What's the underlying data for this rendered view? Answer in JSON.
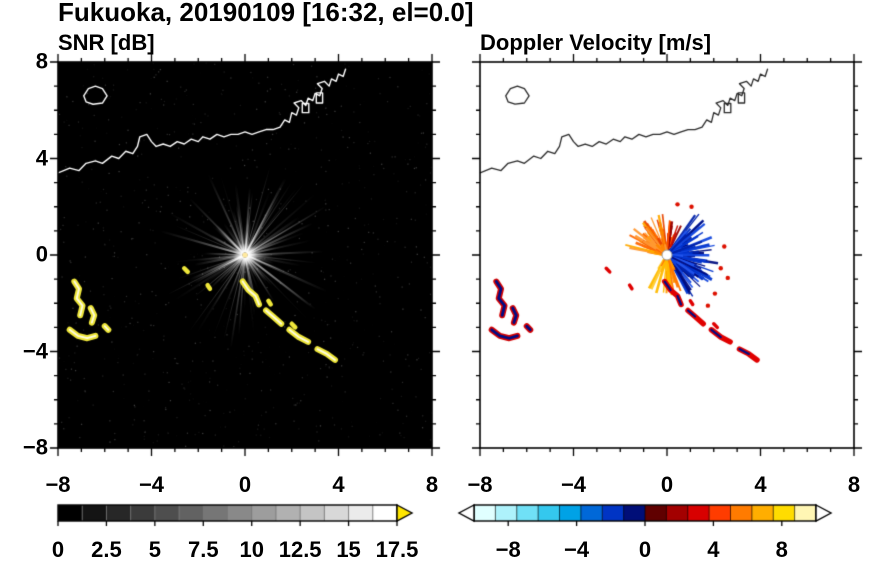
{
  "header": {
    "title": "Fukuoka, 20190109 [16:32, el=0.0]"
  },
  "panels": {
    "snr": {
      "title": "SNR [dB]"
    },
    "velocity": {
      "title": "Doppler Velocity [m/s]"
    }
  },
  "axes": {
    "x_ticks": [
      "−8",
      "−4",
      "0",
      "4",
      "8"
    ],
    "x_tick_values": [
      -8,
      -4,
      0,
      4,
      8
    ],
    "y_ticks": [
      "8",
      "4",
      "0",
      "−4",
      "−8"
    ],
    "y_tick_values": [
      8,
      4,
      0,
      -4,
      -8
    ],
    "range": [
      -8,
      8
    ]
  },
  "colorbars": {
    "snr": {
      "ticks": [
        "0",
        "2.5",
        "5",
        "7.5",
        "10",
        "12.5",
        "15",
        "17.5"
      ],
      "values": [
        0,
        2.5,
        5,
        7.5,
        10,
        12.5,
        15,
        17.5
      ],
      "range": [
        0,
        17.5
      ],
      "segments": 14,
      "colormap": "grayscale",
      "over_color": "#ffe600"
    },
    "velocity": {
      "ticks": [
        "−8",
        "−4",
        "0",
        "4",
        "8"
      ],
      "values": [
        -8,
        -4,
        0,
        4,
        8
      ],
      "range": [
        -10,
        10
      ],
      "colors": [
        "#e0ffff",
        "#aef2fb",
        "#70e0f6",
        "#34c8ee",
        "#00a2e6",
        "#0068d8",
        "#0034c4",
        "#000e78",
        "#600000",
        "#a30000",
        "#d80000",
        "#ff3c00",
        "#ff7b00",
        "#ffae00",
        "#ffdc00",
        "#fff6b4"
      ],
      "under_color": "#ffffff",
      "over_color": "#ffffff"
    }
  },
  "chart_data": [
    {
      "type": "heatmap",
      "title": "SNR [dB]",
      "xlabel": "",
      "ylabel": "",
      "xlim": [
        -8,
        8
      ],
      "ylim": [
        -8,
        8
      ],
      "background": "#000000",
      "description": "Radar PPI of signal-to-noise ratio over Fukuoka; bright white beams radiate from the radar at the origin over a black background; strong (> 17.5 dB, yellow) sea/ground clutter arcs lie near (-7,-2) and along a curve from (0,-1) to (3.9,-4.4); the coastline of Hakata Bay is drawn in white along the top of the map.",
      "radar": {
        "center": [
          0,
          0
        ],
        "beam_rays": {
          "count": 170,
          "max_radius": 4.1,
          "color": "#ffffff"
        }
      },
      "clutter_color": "#efe73a",
      "clutter_arcs": [
        [
          [
            -7.3,
            -1.1
          ],
          [
            -7.1,
            -1.4
          ],
          [
            -7.2,
            -1.8
          ],
          [
            -6.95,
            -2.1
          ],
          [
            -7.05,
            -2.5
          ]
        ],
        [
          [
            -6.6,
            -2.2
          ],
          [
            -6.45,
            -2.5
          ],
          [
            -6.55,
            -2.8
          ]
        ],
        [
          [
            -7.5,
            -3.1
          ],
          [
            -7.15,
            -3.35
          ],
          [
            -6.75,
            -3.45
          ],
          [
            -6.4,
            -3.35
          ]
        ],
        [
          [
            -6.0,
            -2.95
          ],
          [
            -5.85,
            -3.1
          ]
        ],
        [
          [
            -0.1,
            -1.1
          ],
          [
            0.15,
            -1.45
          ],
          [
            0.45,
            -1.7
          ],
          [
            0.6,
            -2.05
          ]
        ],
        [
          [
            0.9,
            -2.3
          ],
          [
            1.2,
            -2.55
          ],
          [
            1.55,
            -2.85
          ]
        ],
        [
          [
            1.9,
            -3.1
          ],
          [
            2.3,
            -3.4
          ],
          [
            2.7,
            -3.6
          ]
        ],
        [
          [
            3.1,
            -3.9
          ],
          [
            3.5,
            -4.1
          ],
          [
            3.85,
            -4.35
          ]
        ]
      ],
      "clutter_specks": [
        [
          [
            -2.6,
            -0.55
          ],
          [
            -2.45,
            -0.7
          ]
        ],
        [
          [
            -1.6,
            -1.25
          ],
          [
            -1.5,
            -1.4
          ]
        ],
        [
          [
            1.0,
            -1.9
          ],
          [
            1.1,
            -2.05
          ]
        ],
        [
          [
            2.0,
            -2.85
          ],
          [
            2.15,
            -3.0
          ]
        ]
      ],
      "coastline": [
        [
          -8.0,
          3.4
        ],
        [
          -7.5,
          3.6
        ],
        [
          -7.1,
          3.5
        ],
        [
          -6.8,
          3.8
        ],
        [
          -6.4,
          3.9
        ],
        [
          -6.1,
          3.8
        ],
        [
          -5.7,
          4.1
        ],
        [
          -5.4,
          4.0
        ],
        [
          -5.1,
          4.3
        ],
        [
          -4.8,
          4.2
        ],
        [
          -4.6,
          4.5
        ],
        [
          -4.5,
          4.9
        ],
        [
          -4.2,
          5.0
        ],
        [
          -4.0,
          4.7
        ],
        [
          -3.8,
          4.5
        ],
        [
          -3.5,
          4.6
        ],
        [
          -3.2,
          4.5
        ],
        [
          -2.9,
          4.7
        ],
        [
          -2.6,
          4.6
        ],
        [
          -2.3,
          4.8
        ],
        [
          -2.0,
          4.7
        ],
        [
          -1.8,
          4.9
        ],
        [
          -1.5,
          4.8
        ],
        [
          -1.2,
          5.0
        ],
        [
          -0.9,
          4.9
        ],
        [
          -0.6,
          5.0
        ],
        [
          -0.3,
          5.0
        ],
        [
          0.0,
          5.1
        ],
        [
          0.3,
          5.0
        ],
        [
          0.6,
          5.1
        ],
        [
          0.9,
          5.2
        ],
        [
          1.2,
          5.2
        ],
        [
          1.5,
          5.3
        ],
        [
          1.7,
          5.6
        ],
        [
          1.9,
          5.5
        ],
        [
          2.0,
          5.9
        ],
        [
          2.2,
          5.8
        ],
        [
          2.3,
          6.1
        ],
        [
          2.1,
          6.3
        ],
        [
          2.4,
          6.4
        ],
        [
          2.6,
          6.2
        ],
        [
          2.7,
          6.5
        ],
        [
          2.9,
          6.4
        ],
        [
          3.0,
          6.7
        ],
        [
          3.2,
          6.6
        ],
        [
          3.3,
          6.9
        ],
        [
          3.1,
          7.1
        ],
        [
          3.4,
          7.2
        ],
        [
          3.6,
          7.0
        ],
        [
          3.7,
          7.3
        ],
        [
          3.9,
          7.2
        ],
        [
          4.0,
          7.5
        ],
        [
          4.2,
          7.4
        ],
        [
          4.3,
          7.7
        ]
      ],
      "island": [
        [
          -6.9,
          6.6
        ],
        [
          -6.7,
          6.9
        ],
        [
          -6.4,
          7.0
        ],
        [
          -6.1,
          6.9
        ],
        [
          -5.9,
          6.6
        ],
        [
          -6.1,
          6.3
        ],
        [
          -6.5,
          6.25
        ],
        [
          -6.8,
          6.35
        ]
      ],
      "pier_boxes": [
        [
          2.45,
          5.9,
          0.28,
          0.38
        ],
        [
          3.05,
          6.3,
          0.27,
          0.42
        ]
      ]
    },
    {
      "type": "heatmap",
      "title": "Doppler Velocity [m/s]",
      "xlabel": "",
      "ylabel": "",
      "xlim": [
        -8,
        8
      ],
      "ylim": [
        -8,
        8
      ],
      "background": "#ffffff",
      "description": "Radar PPI of Doppler velocity; a fan of echoes surrounds the radar at the origin: positive (orange/red) velocities to the north-west and south, strong negative (blue/navy) velocities in a dense lobe to the east and south-east; small red/navy echoes coincide with the SNR clutter arcs near (-7,-2) and along (0,-1)-(3.9,-4.4); coastline drawn in black.",
      "coast_color": "#2a2a2a",
      "fans": [
        {
          "name": "north-red",
          "deg": [
            62,
            95
          ],
          "count": 26,
          "len": [
            0.35,
            1.5
          ],
          "width": [
            1.2,
            2.6
          ],
          "colors": [
            "#cc1100",
            "#e83300",
            "#990000",
            "#ff5500"
          ]
        },
        {
          "name": "northwest-orange",
          "deg": [
            95,
            172
          ],
          "count": 85,
          "len": [
            0.4,
            1.85
          ],
          "width": [
            1.2,
            3.2
          ],
          "colors": [
            "#ff6600",
            "#ff8800",
            "#ffaa00",
            "#e84400",
            "#ff9933"
          ]
        },
        {
          "name": "east-blue-core",
          "deg": [
            -58,
            52
          ],
          "count": 70,
          "len": [
            0.25,
            1.05
          ],
          "width": [
            3.0,
            6.0
          ],
          "colors": [
            "#0022bb",
            "#001099",
            "#0033cc",
            "#000d80"
          ]
        },
        {
          "name": "east-blue-spikes",
          "deg": [
            -62,
            55
          ],
          "count": 120,
          "len": [
            0.4,
            2.25
          ],
          "width": [
            1.2,
            3.0
          ],
          "colors": [
            "#0033cc",
            "#0022aa",
            "#2255ee",
            "#000d80",
            "#1144dd"
          ]
        },
        {
          "name": "south-orange",
          "deg": [
            -122,
            -62
          ],
          "count": 48,
          "len": [
            0.3,
            1.75
          ],
          "width": [
            1.2,
            2.8
          ],
          "colors": [
            "#ff9900",
            "#ffbb00",
            "#ff7700",
            "#ffcc33"
          ]
        }
      ],
      "fringe_color": "#dd1100",
      "fringe_dots": [
        [
          2.3,
          -0.55
        ],
        [
          2.6,
          -0.95
        ],
        [
          2.05,
          -1.6
        ],
        [
          2.45,
          0.35
        ],
        [
          1.05,
          2.0
        ],
        [
          0.45,
          2.1
        ],
        [
          1.75,
          -2.1
        ]
      ],
      "echo_colors": {
        "edge": "#d40000",
        "core": "#000d85",
        "chain_main": "#e00000"
      },
      "echo_note": "echo features reuse the SNR clutter arc locations"
    }
  ]
}
